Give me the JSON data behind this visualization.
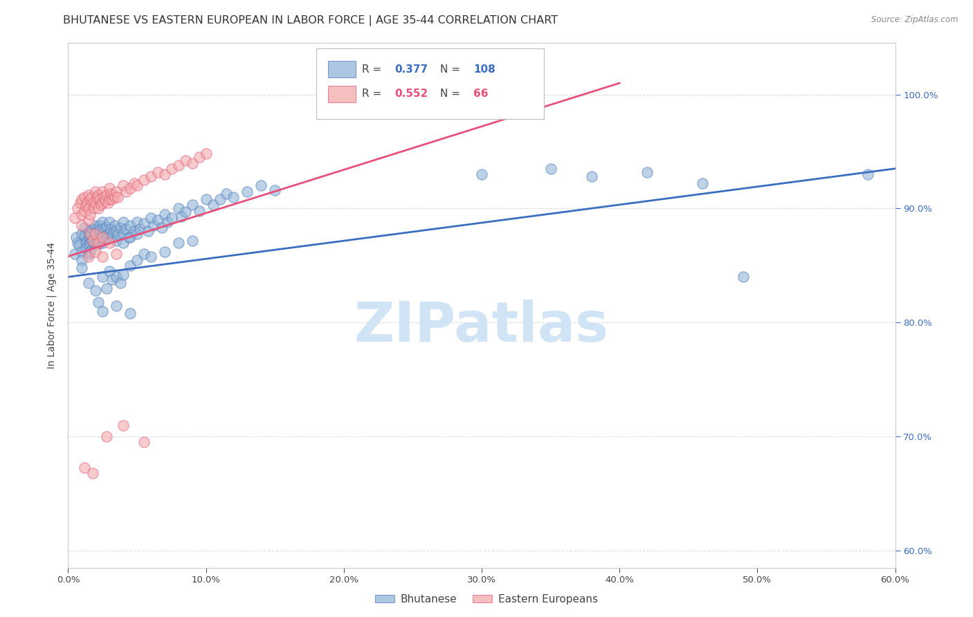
{
  "title": "BHUTANESE VS EASTERN EUROPEAN IN LABOR FORCE | AGE 35-44 CORRELATION CHART",
  "source": "Source: ZipAtlas.com",
  "xlabel_ticks": [
    "0.0%",
    "",
    "10.0%",
    "",
    "20.0%",
    "",
    "30.0%",
    "",
    "40.0%",
    "",
    "50.0%",
    "",
    "60.0%"
  ],
  "xlabel_vals": [
    0.0,
    0.05,
    0.1,
    0.15,
    0.2,
    0.25,
    0.3,
    0.35,
    0.4,
    0.45,
    0.5,
    0.55,
    0.6
  ],
  "xlabel_major_ticks": [
    "0.0%",
    "10.0%",
    "20.0%",
    "30.0%",
    "40.0%",
    "50.0%",
    "60.0%"
  ],
  "xlabel_major_vals": [
    0.0,
    0.1,
    0.2,
    0.3,
    0.4,
    0.5,
    0.6
  ],
  "ylabel_ticks": [
    "60.0%",
    "70.0%",
    "80.0%",
    "90.0%",
    "100.0%"
  ],
  "ylabel_vals": [
    0.6,
    0.7,
    0.8,
    0.9,
    1.0
  ],
  "xmin": 0.0,
  "xmax": 0.6,
  "ymin": 0.585,
  "ymax": 1.045,
  "ylabel": "In Labor Force | Age 35-44",
  "legend_bhutanese": "Bhutanese",
  "legend_eastern": "Eastern Europeans",
  "R_blue": "0.377",
  "N_blue": "108",
  "R_pink": "0.552",
  "N_pink": "66",
  "blue_color": "#92B4D8",
  "pink_color": "#F4AAAA",
  "blue_edge_color": "#5580BB",
  "pink_edge_color": "#E06080",
  "blue_line_color": "#3A6DBF",
  "pink_line_color": "#E8507A",
  "watermark": "ZIPatlas",
  "watermark_color": "#D0E4F5",
  "title_fontsize": 11.5,
  "axis_label_fontsize": 10,
  "tick_fontsize": 9.5,
  "blue_scatter": [
    [
      0.005,
      0.86
    ],
    [
      0.006,
      0.875
    ],
    [
      0.007,
      0.87
    ],
    [
      0.008,
      0.868
    ],
    [
      0.01,
      0.878
    ],
    [
      0.01,
      0.862
    ],
    [
      0.01,
      0.855
    ],
    [
      0.01,
      0.848
    ],
    [
      0.012,
      0.883
    ],
    [
      0.012,
      0.876
    ],
    [
      0.013,
      0.87
    ],
    [
      0.013,
      0.865
    ],
    [
      0.014,
      0.872
    ],
    [
      0.015,
      0.88
    ],
    [
      0.015,
      0.875
    ],
    [
      0.015,
      0.868
    ],
    [
      0.015,
      0.86
    ],
    [
      0.016,
      0.876
    ],
    [
      0.016,
      0.87
    ],
    [
      0.016,
      0.862
    ],
    [
      0.017,
      0.878
    ],
    [
      0.017,
      0.872
    ],
    [
      0.018,
      0.882
    ],
    [
      0.018,
      0.875
    ],
    [
      0.019,
      0.878
    ],
    [
      0.019,
      0.87
    ],
    [
      0.02,
      0.885
    ],
    [
      0.02,
      0.878
    ],
    [
      0.02,
      0.87
    ],
    [
      0.021,
      0.882
    ],
    [
      0.021,
      0.875
    ],
    [
      0.021,
      0.868
    ],
    [
      0.022,
      0.88
    ],
    [
      0.022,
      0.873
    ],
    [
      0.023,
      0.885
    ],
    [
      0.023,
      0.877
    ],
    [
      0.023,
      0.87
    ],
    [
      0.024,
      0.882
    ],
    [
      0.024,
      0.875
    ],
    [
      0.025,
      0.888
    ],
    [
      0.025,
      0.878
    ],
    [
      0.025,
      0.87
    ],
    [
      0.026,
      0.882
    ],
    [
      0.027,
      0.876
    ],
    [
      0.028,
      0.884
    ],
    [
      0.028,
      0.874
    ],
    [
      0.029,
      0.878
    ],
    [
      0.03,
      0.888
    ],
    [
      0.03,
      0.878
    ],
    [
      0.031,
      0.882
    ],
    [
      0.032,
      0.876
    ],
    [
      0.033,
      0.88
    ],
    [
      0.034,
      0.885
    ],
    [
      0.035,
      0.88
    ],
    [
      0.035,
      0.872
    ],
    [
      0.036,
      0.878
    ],
    [
      0.038,
      0.883
    ],
    [
      0.04,
      0.888
    ],
    [
      0.04,
      0.878
    ],
    [
      0.04,
      0.87
    ],
    [
      0.042,
      0.882
    ],
    [
      0.044,
      0.875
    ],
    [
      0.045,
      0.885
    ],
    [
      0.045,
      0.875
    ],
    [
      0.048,
      0.88
    ],
    [
      0.05,
      0.888
    ],
    [
      0.05,
      0.878
    ],
    [
      0.052,
      0.882
    ],
    [
      0.055,
      0.887
    ],
    [
      0.058,
      0.88
    ],
    [
      0.06,
      0.892
    ],
    [
      0.062,
      0.885
    ],
    [
      0.065,
      0.89
    ],
    [
      0.068,
      0.883
    ],
    [
      0.07,
      0.895
    ],
    [
      0.072,
      0.888
    ],
    [
      0.075,
      0.892
    ],
    [
      0.08,
      0.9
    ],
    [
      0.082,
      0.893
    ],
    [
      0.085,
      0.897
    ],
    [
      0.09,
      0.903
    ],
    [
      0.095,
      0.898
    ],
    [
      0.1,
      0.908
    ],
    [
      0.105,
      0.903
    ],
    [
      0.11,
      0.908
    ],
    [
      0.115,
      0.913
    ],
    [
      0.12,
      0.91
    ],
    [
      0.13,
      0.915
    ],
    [
      0.14,
      0.92
    ],
    [
      0.15,
      0.916
    ],
    [
      0.015,
      0.835
    ],
    [
      0.02,
      0.828
    ],
    [
      0.022,
      0.818
    ],
    [
      0.025,
      0.84
    ],
    [
      0.028,
      0.83
    ],
    [
      0.03,
      0.845
    ],
    [
      0.032,
      0.838
    ],
    [
      0.035,
      0.84
    ],
    [
      0.038,
      0.835
    ],
    [
      0.04,
      0.842
    ],
    [
      0.045,
      0.85
    ],
    [
      0.05,
      0.855
    ],
    [
      0.055,
      0.86
    ],
    [
      0.06,
      0.858
    ],
    [
      0.07,
      0.862
    ],
    [
      0.08,
      0.87
    ],
    [
      0.09,
      0.872
    ],
    [
      0.025,
      0.81
    ],
    [
      0.035,
      0.815
    ],
    [
      0.045,
      0.808
    ],
    [
      0.3,
      0.93
    ],
    [
      0.35,
      0.935
    ],
    [
      0.38,
      0.928
    ],
    [
      0.42,
      0.932
    ],
    [
      0.46,
      0.922
    ],
    [
      0.49,
      0.84
    ],
    [
      0.58,
      0.93
    ]
  ],
  "pink_scatter": [
    [
      0.005,
      0.892
    ],
    [
      0.007,
      0.9
    ],
    [
      0.009,
      0.905
    ],
    [
      0.01,
      0.908
    ],
    [
      0.01,
      0.895
    ],
    [
      0.01,
      0.885
    ],
    [
      0.012,
      0.91
    ],
    [
      0.012,
      0.898
    ],
    [
      0.013,
      0.903
    ],
    [
      0.014,
      0.905
    ],
    [
      0.015,
      0.912
    ],
    [
      0.015,
      0.9
    ],
    [
      0.015,
      0.89
    ],
    [
      0.016,
      0.908
    ],
    [
      0.016,
      0.895
    ],
    [
      0.017,
      0.91
    ],
    [
      0.018,
      0.905
    ],
    [
      0.019,
      0.9
    ],
    [
      0.02,
      0.915
    ],
    [
      0.02,
      0.905
    ],
    [
      0.021,
      0.91
    ],
    [
      0.022,
      0.912
    ],
    [
      0.022,
      0.9
    ],
    [
      0.023,
      0.908
    ],
    [
      0.024,
      0.903
    ],
    [
      0.025,
      0.915
    ],
    [
      0.025,
      0.905
    ],
    [
      0.026,
      0.91
    ],
    [
      0.027,
      0.907
    ],
    [
      0.028,
      0.912
    ],
    [
      0.029,
      0.905
    ],
    [
      0.03,
      0.918
    ],
    [
      0.03,
      0.908
    ],
    [
      0.031,
      0.913
    ],
    [
      0.032,
      0.908
    ],
    [
      0.033,
      0.912
    ],
    [
      0.034,
      0.91
    ],
    [
      0.035,
      0.915
    ],
    [
      0.036,
      0.91
    ],
    [
      0.04,
      0.92
    ],
    [
      0.042,
      0.915
    ],
    [
      0.045,
      0.918
    ],
    [
      0.048,
      0.922
    ],
    [
      0.05,
      0.92
    ],
    [
      0.055,
      0.925
    ],
    [
      0.06,
      0.928
    ],
    [
      0.065,
      0.932
    ],
    [
      0.07,
      0.93
    ],
    [
      0.075,
      0.935
    ],
    [
      0.08,
      0.938
    ],
    [
      0.085,
      0.942
    ],
    [
      0.09,
      0.94
    ],
    [
      0.095,
      0.945
    ],
    [
      0.1,
      0.948
    ],
    [
      0.016,
      0.878
    ],
    [
      0.018,
      0.872
    ],
    [
      0.02,
      0.878
    ],
    [
      0.022,
      0.87
    ],
    [
      0.025,
      0.875
    ],
    [
      0.03,
      0.87
    ],
    [
      0.015,
      0.858
    ],
    [
      0.02,
      0.862
    ],
    [
      0.025,
      0.858
    ],
    [
      0.035,
      0.86
    ],
    [
      0.028,
      0.7
    ],
    [
      0.04,
      0.71
    ],
    [
      0.055,
      0.695
    ],
    [
      0.012,
      0.673
    ],
    [
      0.018,
      0.668
    ]
  ],
  "blue_trend_x": [
    0.0,
    0.6
  ],
  "blue_trend_y": [
    0.84,
    0.935
  ],
  "pink_trend_x": [
    0.0,
    0.4
  ],
  "pink_trend_y": [
    0.858,
    1.01
  ]
}
